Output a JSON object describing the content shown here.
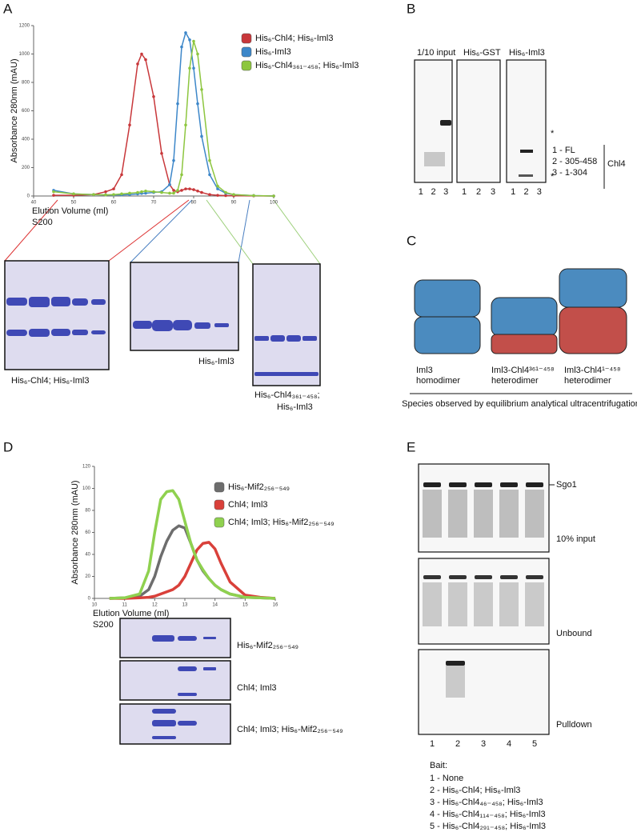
{
  "chart_data": [
    {
      "type": "line",
      "x_label": "Elution Volume (ml)",
      "y_label": "Absorbance 280nm (mAU)",
      "note": "S200",
      "x": [
        45,
        50,
        55,
        58,
        60,
        62,
        64,
        66,
        67,
        68,
        70,
        72,
        74,
        75,
        76,
        77,
        78,
        79,
        80,
        81,
        82,
        84,
        86,
        88,
        90,
        95,
        100
      ],
      "series": [
        {
          "name": "His₆-Chl4; His₆-Iml3",
          "color": "#c8373a",
          "values": [
            5,
            5,
            10,
            30,
            50,
            150,
            500,
            930,
            1000,
            960,
            700,
            300,
            80,
            40,
            30,
            40,
            50,
            50,
            45,
            35,
            25,
            10,
            5,
            3,
            2,
            1,
            0
          ]
        },
        {
          "name": "His₆-Iml3",
          "color": "#3d87c9",
          "values": [
            40,
            15,
            10,
            8,
            8,
            8,
            10,
            15,
            18,
            20,
            25,
            30,
            80,
            250,
            650,
            1050,
            1150,
            1100,
            900,
            650,
            420,
            150,
            50,
            20,
            10,
            3,
            0
          ]
        },
        {
          "name": "His₆-Chl4₃₆₁₋₄₅₈; His₆-Iml3",
          "color": "#8dc63f",
          "values": [
            30,
            15,
            10,
            8,
            10,
            15,
            20,
            25,
            30,
            35,
            30,
            25,
            20,
            20,
            40,
            150,
            500,
            900,
            1090,
            1000,
            750,
            250,
            70,
            25,
            10,
            3,
            0
          ]
        }
      ],
      "xlim": [
        40,
        100
      ],
      "xticks": [
        40,
        50,
        60,
        70,
        80,
        90,
        100
      ],
      "ylim": [
        0,
        1200
      ],
      "yticks": [
        0,
        200,
        400,
        600,
        800,
        1000,
        1200
      ]
    },
    {
      "type": "line",
      "x_label": "Elution Volume (ml)",
      "y_label": "Absorbance 280nm (mAU)",
      "note": "S200",
      "x": [
        10.5,
        11,
        11.5,
        11.8,
        12,
        12.2,
        12.4,
        12.6,
        12.8,
        13,
        13.2,
        13.4,
        13.6,
        13.8,
        14,
        14.2,
        14.5,
        15,
        15.5,
        16
      ],
      "series": [
        {
          "name": "His₆-Mif2₂₅₆₋₅₄₉",
          "color": "#6d6d6d",
          "values": [
            0,
            0.5,
            2,
            8,
            20,
            38,
            52,
            62,
            66,
            64,
            50,
            35,
            25,
            18,
            12,
            8,
            4,
            1,
            0.5,
            0
          ]
        },
        {
          "name": "Chl4; Iml3",
          "color": "#d9403a",
          "values": [
            0,
            0,
            0.5,
            1,
            2,
            4,
            6,
            8,
            12,
            20,
            32,
            44,
            50,
            51,
            45,
            32,
            15,
            3,
            1,
            0
          ]
        },
        {
          "name": "Chl4; Iml3; His₆-Mif2₂₅₆₋₅₄₉",
          "color": "#8fd14f",
          "values": [
            0,
            0.5,
            4,
            25,
            60,
            90,
            97,
            98,
            90,
            70,
            50,
            35,
            26,
            18,
            12,
            8,
            4,
            1,
            0.5,
            0
          ]
        }
      ],
      "xlim": [
        10,
        16
      ],
      "xticks": [
        10,
        11,
        12,
        13,
        14,
        15,
        16
      ],
      "ylim": [
        0,
        120
      ],
      "yticks": [
        0,
        20,
        40,
        60,
        80,
        100,
        120
      ]
    }
  ],
  "panels": {
    "labels": [
      "A",
      "B",
      "C",
      "D",
      "E"
    ],
    "a_gels": [
      "His₆-Chl4; His₆-Iml3",
      "His₆-Iml3",
      "His₆-Chl4₃₆₁₋₄₅₈;",
      "His₆-Iml3"
    ],
    "b": {
      "titles": [
        "1/10 input",
        "His₆-GST",
        "His₆-Iml3"
      ],
      "lanes": [
        "1",
        "2",
        "3"
      ],
      "asterisk": "*",
      "legend": [
        "1 - FL",
        "2 - 305-458",
        "3 - 1-304"
      ],
      "group": "Chl4"
    },
    "c": {
      "species": [
        [
          "Iml3",
          "homodimer"
        ],
        [
          "Iml3-Chl4³⁶¹⁻⁴⁵⁸",
          "heterodimer"
        ],
        [
          "Iml3-Chl4¹⁻⁴⁵⁸",
          "heterodimer"
        ]
      ],
      "caption": "Species observed by equilibrium analytical ultracentrifugation"
    },
    "d_gels": [
      "His₆-Mif2₂₅₆₋₅₄₉",
      "Chl4; Iml3",
      "Chl4; Iml3; His₆-Mif2₂₅₆₋₅₄₉"
    ],
    "e": {
      "band": "Sgo1",
      "blots": [
        "10% input",
        "Unbound",
        "Pulldown"
      ],
      "lanes": [
        "1",
        "2",
        "3",
        "4",
        "5"
      ],
      "bait_title": "Bait:",
      "bait": [
        "1 - None",
        "2 - His₆-Chl4; His₆-Iml3",
        "3 - His₆-Chl4₄₆₋₄₅₈; His₆-Iml3",
        "4 - His₆-Chl4₁₁₄₋₄₅₈; His₆-Iml3",
        "5 - His₆-Chl4₂₉₁₋₄₅₈; His₆-Iml3"
      ]
    }
  }
}
